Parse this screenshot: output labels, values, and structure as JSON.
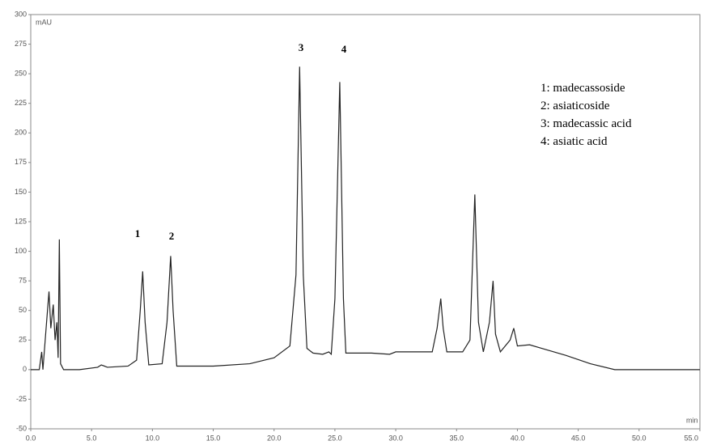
{
  "chart_data": {
    "type": "line",
    "y_label": "mAU",
    "x_label": "min",
    "x": [
      0,
      0.7,
      0.9,
      1.0,
      1.3,
      1.5,
      1.65,
      1.85,
      2.0,
      2.15,
      2.25,
      2.35,
      2.45,
      2.7,
      4,
      5.5,
      5.8,
      6.3,
      8,
      8.7,
      9.0,
      9.2,
      9.4,
      9.7,
      10.8,
      11.2,
      11.5,
      11.7,
      12.0,
      15,
      18,
      20,
      21.3,
      21.8,
      22.1,
      22.4,
      22.7,
      23.2,
      24,
      24.5,
      24.7,
      25.0,
      25.4,
      25.7,
      25.9,
      28,
      29.5,
      30,
      33,
      33.4,
      33.7,
      33.9,
      34.2,
      35.5,
      36.1,
      36.5,
      36.8,
      37.2,
      37.7,
      38.0,
      38.2,
      38.6,
      39.4,
      39.7,
      40.0,
      41.0,
      42,
      44,
      46,
      48,
      55
    ],
    "series": [
      {
        "color": "#222222",
        "values": [
          0,
          0,
          15,
          0,
          40,
          66,
          35,
          55,
          25,
          40,
          10,
          110,
          5,
          0,
          0,
          2,
          4,
          2,
          3,
          8,
          50,
          83,
          40,
          4,
          5,
          40,
          96,
          50,
          3,
          3,
          5,
          10,
          20,
          80,
          256,
          80,
          18,
          14,
          13,
          15,
          13,
          60,
          243,
          60,
          14,
          14,
          13,
          15,
          15,
          35,
          60,
          35,
          15,
          15,
          25,
          148,
          40,
          15,
          40,
          75,
          30,
          15,
          25,
          35,
          20,
          21,
          18,
          12,
          5,
          0,
          0
        ]
      }
    ],
    "xlim": [
      0,
      55
    ],
    "xticks": [
      {
        "value": 0,
        "label": "0.0"
      },
      {
        "value": 5,
        "label": "5.0"
      },
      {
        "value": 10,
        "label": "10.0"
      },
      {
        "value": 15,
        "label": "15.0"
      },
      {
        "value": 20,
        "label": "20.0"
      },
      {
        "value": 25,
        "label": "25.0"
      },
      {
        "value": 30,
        "label": "30.0"
      },
      {
        "value": 35,
        "label": "35.0"
      },
      {
        "value": 40,
        "label": "40.0"
      },
      {
        "value": 45,
        "label": "45.0"
      },
      {
        "value": 50,
        "label": "50.0"
      },
      {
        "value": 55,
        "label": "55.0"
      }
    ],
    "ylim": [
      -50,
      300
    ],
    "yticks": [
      -50,
      -25,
      0,
      25,
      50,
      75,
      100,
      125,
      150,
      175,
      200,
      225,
      250,
      275,
      300
    ],
    "peak_labels": [
      "1",
      "2",
      "3",
      "4"
    ],
    "notes": [
      "1: madecassoside",
      "2: asiaticoside",
      "3: madecassic acid",
      "4: asiatic acid"
    ]
  }
}
